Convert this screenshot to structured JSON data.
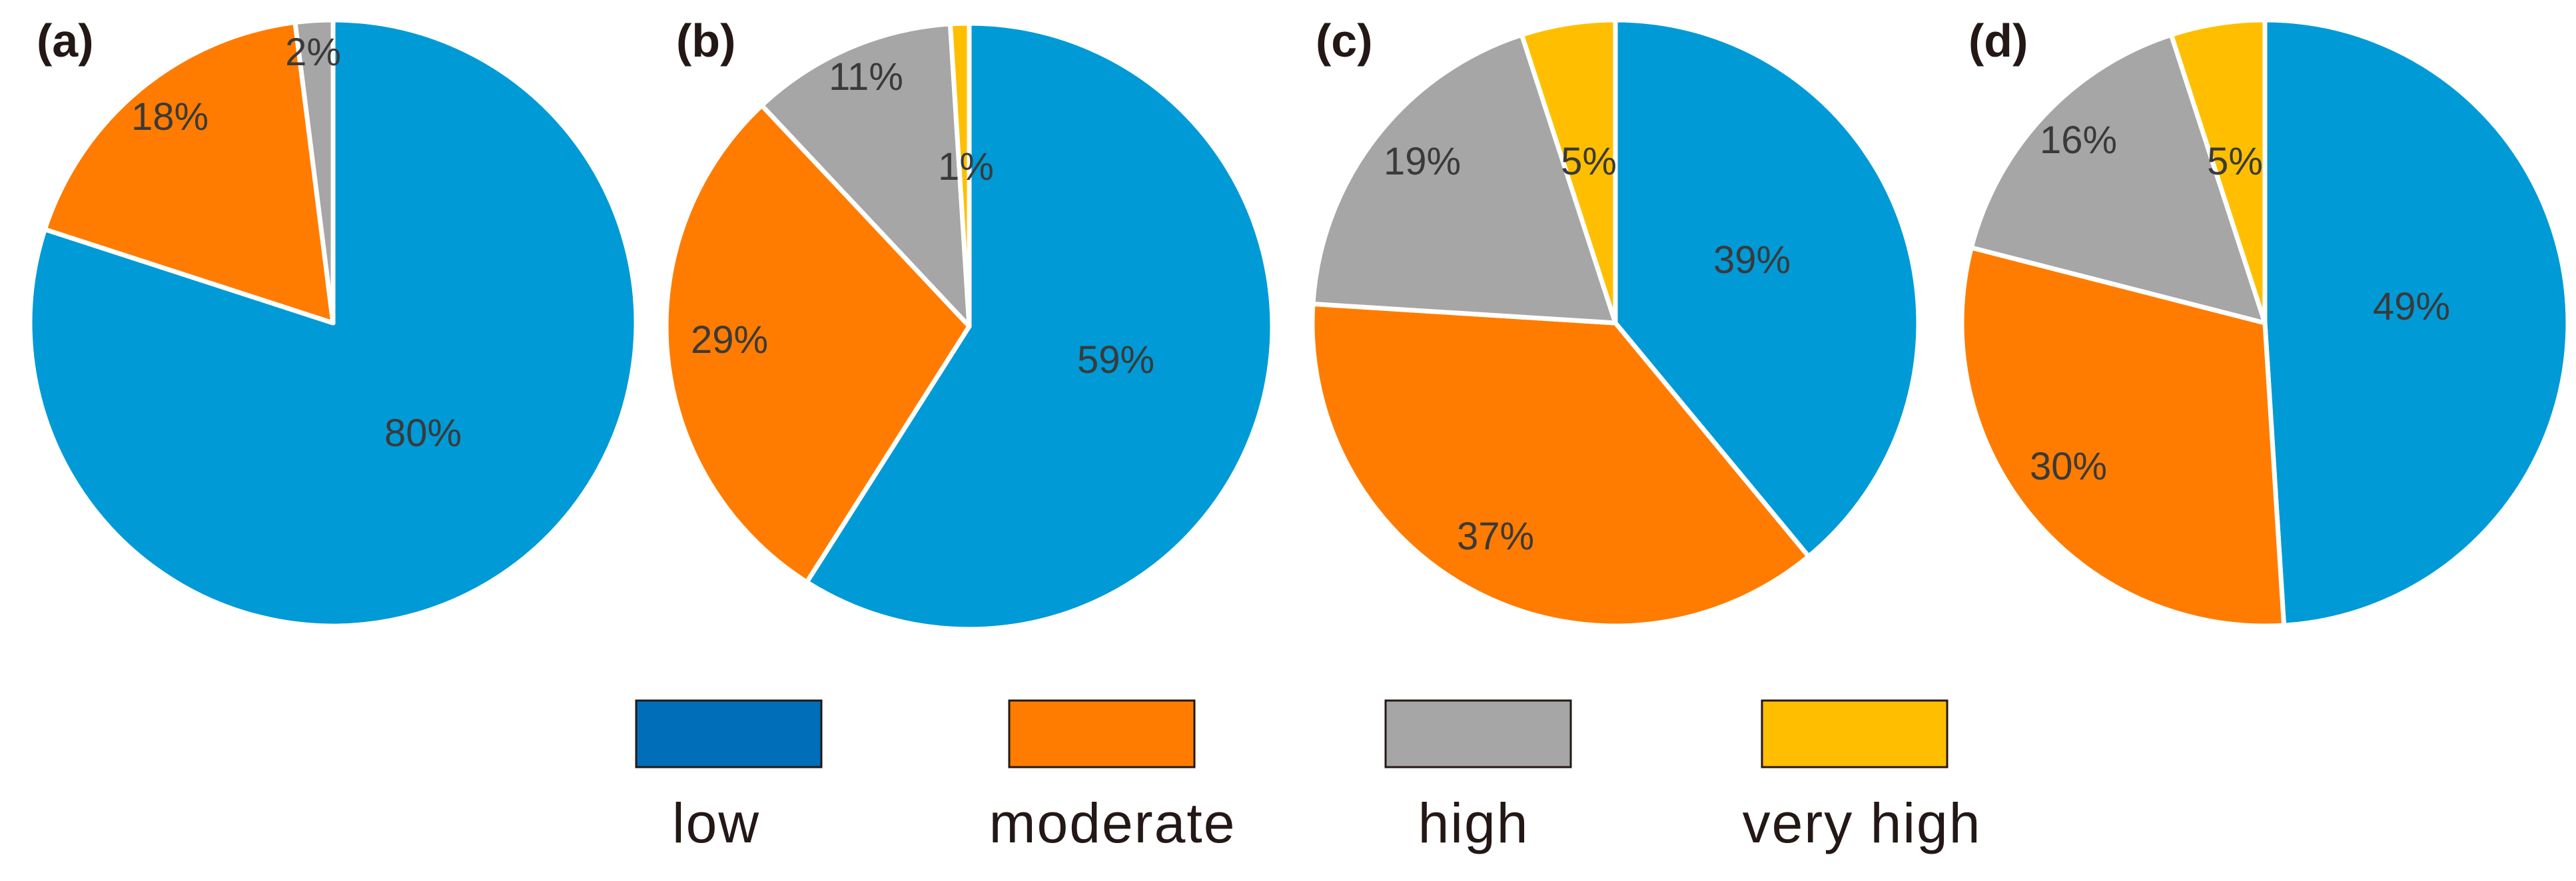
{
  "chart_data": {
    "type": "pie",
    "series_order": [
      "low",
      "moderate",
      "high",
      "very high"
    ],
    "colors": {
      "low": "#009ad6",
      "moderate": "#ff7c00",
      "high": "#a6a6a6",
      "very high": "#ffbf00"
    },
    "legend": {
      "placement": "bottom-center",
      "entries": [
        {
          "label": "low",
          "color": "#006eb8"
        },
        {
          "label": "moderate",
          "color": "#ff7c00"
        },
        {
          "label": "high",
          "color": "#a6a6a6"
        },
        {
          "label": "very high",
          "color": "#ffbf00"
        }
      ]
    },
    "panels": [
      {
        "label": "(a)",
        "slices": [
          {
            "category": "low",
            "value": 80,
            "label": "80%"
          },
          {
            "category": "moderate",
            "value": 18,
            "label": "18%"
          },
          {
            "category": "high",
            "value": 2,
            "label": "2%"
          }
        ]
      },
      {
        "label": "(b)",
        "slices": [
          {
            "category": "low",
            "value": 59,
            "label": "59%"
          },
          {
            "category": "moderate",
            "value": 29,
            "label": "29%"
          },
          {
            "category": "high",
            "value": 11,
            "label": "11%"
          },
          {
            "category": "very high",
            "value": 1,
            "label": "1%"
          }
        ]
      },
      {
        "label": "(c)",
        "slices": [
          {
            "category": "low",
            "value": 39,
            "label": "39%"
          },
          {
            "category": "moderate",
            "value": 37,
            "label": "37%"
          },
          {
            "category": "high",
            "value": 19,
            "label": "19%"
          },
          {
            "category": "very high",
            "value": 5,
            "label": "5%"
          }
        ]
      },
      {
        "label": "(d)",
        "slices": [
          {
            "category": "low",
            "value": 49,
            "label": "49%"
          },
          {
            "category": "moderate",
            "value": 30,
            "label": "30%"
          },
          {
            "category": "high",
            "value": 16,
            "label": "16%"
          },
          {
            "category": "very high",
            "value": 5,
            "label": "5%"
          }
        ]
      }
    ]
  }
}
